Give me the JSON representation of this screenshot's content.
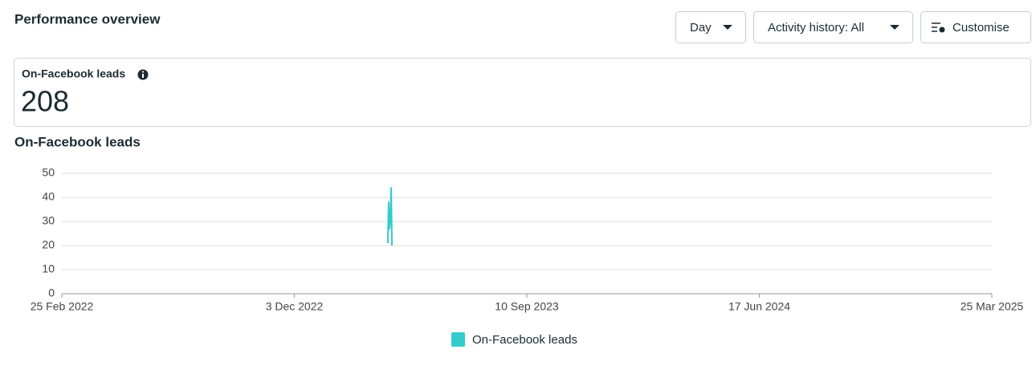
{
  "header": {
    "title": "Performance overview",
    "buttons": [
      "Day",
      "Activity history: All",
      "Customise"
    ]
  },
  "metric": {
    "label": "On-Facebook leads",
    "value": 208
  },
  "chart_data": {
    "type": "line",
    "title": "On-Facebook leads",
    "x": [
      "2023-03-26",
      "2023-03-27",
      "2023-03-28",
      "2023-03-29",
      "2023-03-30",
      "2023-03-31"
    ],
    "series": [
      {
        "name": "On-Facebook leads",
        "color": "#33cccc",
        "values": [
          21,
          38,
          27,
          30,
          44,
          20
        ]
      }
    ],
    "xlim": [
      "2022-02-25",
      "2025-03-25"
    ],
    "xticks": [
      {
        "value": "2022-02-25",
        "label": "25 Feb 2022"
      },
      {
        "value": "2022-12-03",
        "label": "3 Dec 2022"
      },
      {
        "value": "2023-09-10",
        "label": "10 Sep 2023"
      },
      {
        "value": "2024-06-17",
        "label": "17 Jun 2024"
      },
      {
        "value": "2025-03-25",
        "label": "25 Mar 2025"
      }
    ],
    "ylim": [
      0,
      50
    ],
    "yticks": [
      0,
      10,
      20,
      30,
      40,
      50
    ],
    "grid": true,
    "legend": "bottom"
  }
}
